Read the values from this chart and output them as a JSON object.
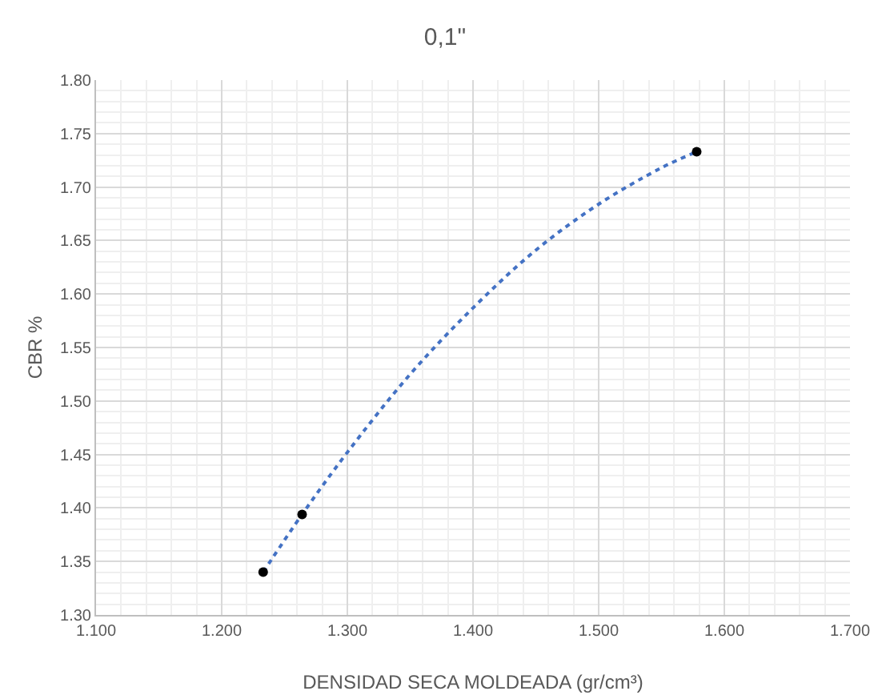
{
  "chart_data": {
    "type": "scatter",
    "title": "0,1\"",
    "xlabel": "DENSIDAD SECA MOLDEADA (gr/cm³)",
    "ylabel": "CBR %",
    "xlim": [
      1.1,
      1.7
    ],
    "ylim": [
      1.3,
      1.8
    ],
    "xticks": [
      {
        "value": 1.1,
        "label": "1.100"
      },
      {
        "value": 1.2,
        "label": "1.200"
      },
      {
        "value": 1.3,
        "label": "1.300"
      },
      {
        "value": 1.4,
        "label": "1.400"
      },
      {
        "value": 1.5,
        "label": "1.500"
      },
      {
        "value": 1.6,
        "label": "1.600"
      },
      {
        "value": 1.7,
        "label": "1.700"
      }
    ],
    "yticks": [
      {
        "value": 1.3,
        "label": "1.30"
      },
      {
        "value": 1.35,
        "label": "1.35"
      },
      {
        "value": 1.4,
        "label": "1.40"
      },
      {
        "value": 1.45,
        "label": "1.45"
      },
      {
        "value": 1.5,
        "label": "1.50"
      },
      {
        "value": 1.55,
        "label": "1.55"
      },
      {
        "value": 1.6,
        "label": "1.60"
      },
      {
        "value": 1.65,
        "label": "1.65"
      },
      {
        "value": 1.7,
        "label": "1.70"
      },
      {
        "value": 1.75,
        "label": "1.75"
      },
      {
        "value": 1.8,
        "label": "1.80"
      }
    ],
    "grid": true,
    "series": [
      {
        "type": "line",
        "color": "#4472c4",
        "line_style": "dotted",
        "marker": "none",
        "x": [
          1.233,
          1.264,
          1.3,
          1.35,
          1.4,
          1.45,
          1.5,
          1.55,
          1.578
        ],
        "values": [
          1.34,
          1.394,
          1.452,
          1.525,
          1.587,
          1.641,
          1.684,
          1.718,
          1.733
        ]
      },
      {
        "type": "scatter",
        "color": "#000000",
        "marker": "circle",
        "x": [
          1.233,
          1.264,
          1.578
        ],
        "values": [
          1.34,
          1.394,
          1.733
        ]
      }
    ]
  }
}
